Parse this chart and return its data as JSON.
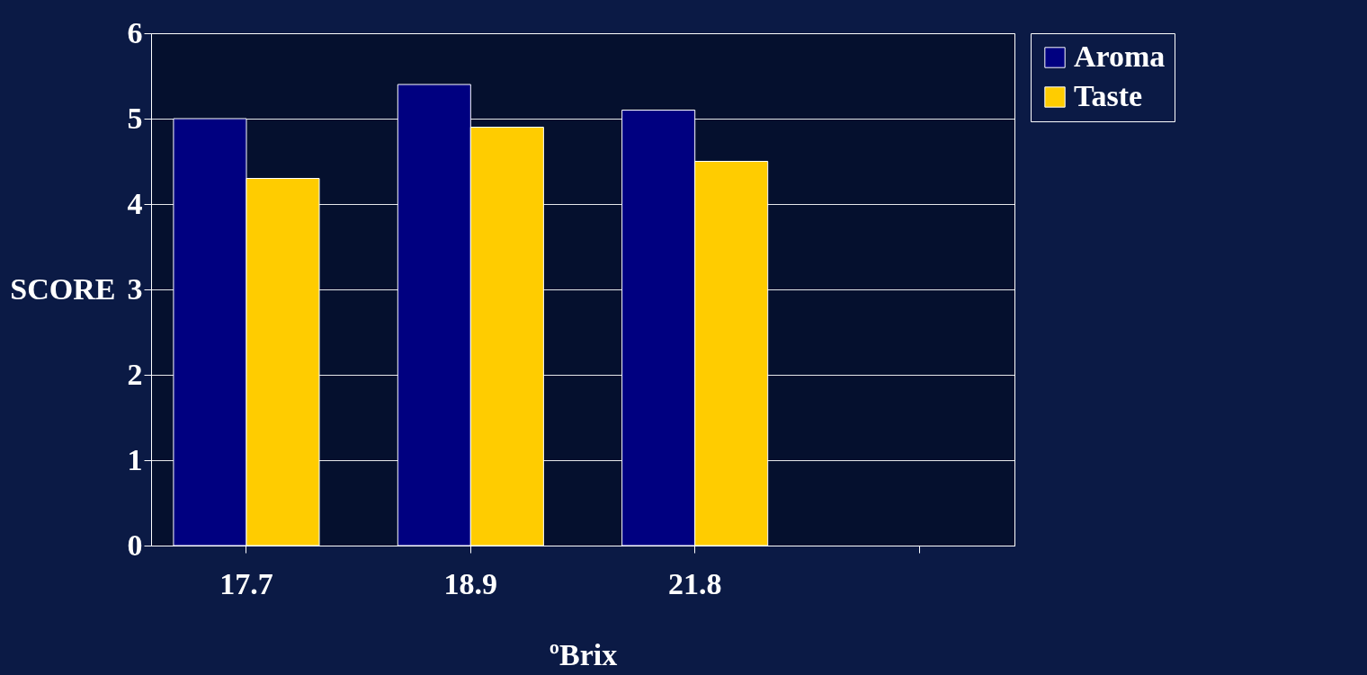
{
  "chart_data": {
    "type": "bar",
    "xlabel": "ºBrix",
    "ylabel": "SCORE",
    "categories": [
      "17.7",
      "18.9",
      "21.8",
      null
    ],
    "series": [
      {
        "name": "Aroma",
        "color": "#000080",
        "values": [
          5.0,
          5.4,
          5.1,
          null
        ]
      },
      {
        "name": "Taste",
        "color": "#ffcc00",
        "values": [
          4.3,
          4.9,
          4.5,
          null
        ]
      }
    ],
    "ylim": [
      0,
      6
    ],
    "yticks": [
      0,
      1,
      2,
      3,
      4,
      5,
      6
    ],
    "grid": "y",
    "legend": "right"
  }
}
